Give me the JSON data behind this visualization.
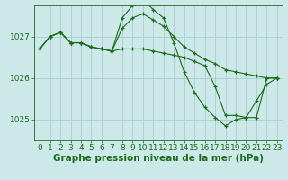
{
  "background_color": "#cce8e8",
  "grid_color": "#aacccc",
  "line_color": "#1a6b1a",
  "marker_color": "#1a6b1a",
  "xlabel": "Graphe pression niveau de la mer (hPa)",
  "xlabel_fontsize": 7.5,
  "tick_label_fontsize": 6.5,
  "ylim": [
    1024.5,
    1027.75
  ],
  "yticks": [
    1025,
    1026,
    1027
  ],
  "xlim": [
    -0.5,
    23.5
  ],
  "xticks": [
    0,
    1,
    2,
    3,
    4,
    5,
    6,
    7,
    8,
    9,
    10,
    11,
    12,
    13,
    14,
    15,
    16,
    17,
    18,
    19,
    20,
    21,
    22,
    23
  ],
  "series": [
    {
      "x": [
        0,
        1,
        2,
        3,
        4,
        5,
        6,
        7,
        8,
        9,
        10,
        11,
        12,
        13,
        14,
        15,
        16,
        17,
        18,
        19,
        20,
        21,
        22,
        23
      ],
      "y": [
        1026.7,
        1027.0,
        1027.1,
        1026.85,
        1026.85,
        1026.75,
        1026.7,
        1026.65,
        1027.45,
        1027.75,
        1027.9,
        1027.65,
        1027.45,
        1026.85,
        1026.15,
        1025.65,
        1025.3,
        1025.05,
        1024.85,
        1025.0,
        1025.05,
        1025.45,
        1025.85,
        1026.0
      ]
    },
    {
      "x": [
        0,
        1,
        2,
        3,
        4,
        5,
        6,
        7,
        8,
        9,
        10,
        11,
        12,
        13,
        14,
        15,
        16,
        17,
        18,
        19,
        20,
        21,
        22,
        23
      ],
      "y": [
        1026.7,
        1027.0,
        1027.1,
        1026.85,
        1026.85,
        1026.75,
        1026.7,
        1026.65,
        1027.2,
        1027.45,
        1027.55,
        1027.4,
        1027.25,
        1027.0,
        1026.75,
        1026.6,
        1026.45,
        1026.35,
        1026.2,
        1026.15,
        1026.1,
        1026.05,
        1026.0,
        1026.0
      ]
    },
    {
      "x": [
        0,
        1,
        2,
        3,
        4,
        5,
        6,
        7,
        8,
        9,
        10,
        11,
        12,
        13,
        14,
        15,
        16,
        17,
        18,
        19,
        20,
        21,
        22,
        23
      ],
      "y": [
        1026.7,
        1027.0,
        1027.1,
        1026.85,
        1026.85,
        1026.75,
        1026.7,
        1026.65,
        1026.7,
        1026.7,
        1026.7,
        1026.65,
        1026.6,
        1026.55,
        1026.5,
        1026.4,
        1026.3,
        1025.8,
        1025.1,
        1025.1,
        1025.05,
        1025.05,
        1026.0,
        1026.0
      ]
    }
  ]
}
